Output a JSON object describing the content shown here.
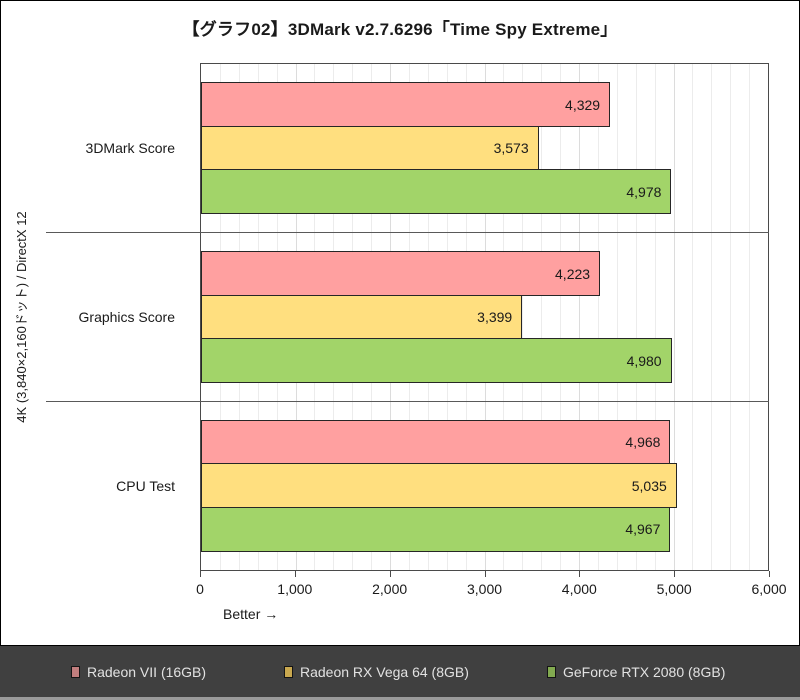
{
  "chart_data": {
    "type": "bar",
    "orientation": "horizontal",
    "title": "【グラフ02】3DMark v2.7.6296「Time Spy Extreme」",
    "row_axis_label": "4K (3,840×2,160ドット) / DirectX 12",
    "better_label": "Better →",
    "categories": [
      "3DMark Score",
      "Graphics Score",
      "CPU Test"
    ],
    "series": [
      {
        "name": "Radeon VII (16GB)",
        "color": "#ffa0a0",
        "legend_color": "#c17e7e",
        "values": [
          4329,
          4223,
          4968
        ]
      },
      {
        "name": "Radeon RX Vega 64 (8GB)",
        "color": "#ffdf7f",
        "legend_color": "#c9a84f",
        "values": [
          3573,
          3399,
          5035
        ]
      },
      {
        "name": "GeForce RTX 2080 (8GB)",
        "color": "#a2d469",
        "legend_color": "#82aa50",
        "values": [
          4978,
          4980,
          4967
        ]
      }
    ],
    "xlim": [
      0,
      6000
    ],
    "x_major_step": 1000,
    "x_minor_step": 200,
    "x_tick_labels": [
      "0",
      "1,000",
      "2,000",
      "3,000",
      "4,000",
      "5,000",
      "6,000"
    ],
    "grid": "vertical, minor every 200 / major every 1000",
    "legend_position": "bottom"
  },
  "colors": {
    "bar_border": "#262626",
    "plot_frame": "#4a4a4a",
    "separator": "#595959",
    "legend_background": "#404040",
    "legend_text": "#e2e2e2",
    "bottom_strip": "#9a9a9a"
  }
}
